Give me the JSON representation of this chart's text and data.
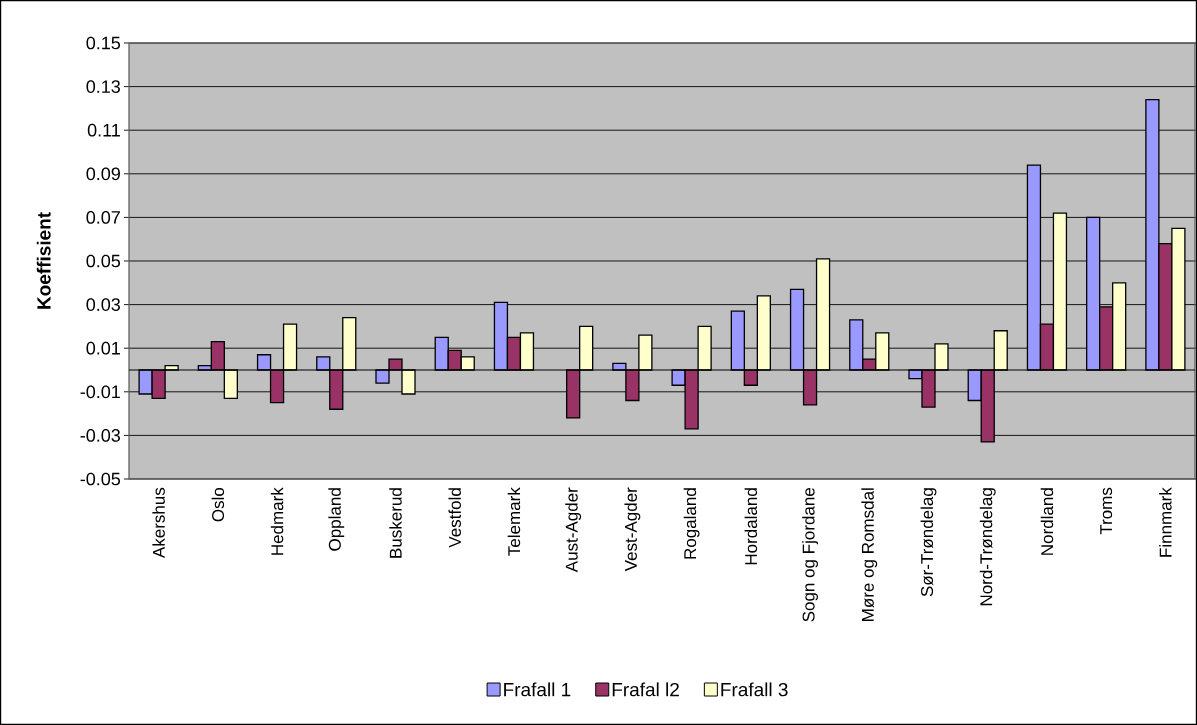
{
  "chart_data": {
    "type": "bar",
    "ylabel": "Koeffisient",
    "categories": [
      "Akershus",
      "Oslo",
      "Hedmark",
      "Oppland",
      "Buskerud",
      "Vestfold",
      "Telemark",
      "Aust-Agder",
      "Vest-Agder",
      "Rogaland",
      "Hordaland",
      "Sogn og Fjordane",
      "Møre og Romsdal",
      "Sør-Trøndelag",
      "Nord-Trøndelag",
      "Nordland",
      "Troms",
      "Finnmark"
    ],
    "series": [
      {
        "name": "Frafall 1",
        "color": "#9999ff",
        "values": [
          -0.011,
          0.002,
          0.007,
          0.006,
          -0.006,
          0.015,
          0.031,
          null,
          0.003,
          -0.007,
          0.027,
          0.037,
          0.023,
          -0.004,
          -0.014,
          0.094,
          0.07,
          0.124
        ]
      },
      {
        "name": "Frafal l2",
        "color": "#993366",
        "values": [
          -0.013,
          0.013,
          -0.015,
          -0.018,
          0.005,
          0.009,
          0.015,
          -0.022,
          -0.014,
          -0.027,
          -0.007,
          -0.016,
          0.005,
          -0.017,
          -0.033,
          0.021,
          0.029,
          0.058
        ]
      },
      {
        "name": "Frafall 3",
        "color": "#ffffcc",
        "values": [
          0.002,
          -0.013,
          0.021,
          0.024,
          -0.011,
          0.006,
          0.017,
          0.02,
          0.016,
          0.02,
          0.034,
          0.051,
          0.017,
          0.012,
          0.018,
          0.072,
          0.04,
          0.065
        ]
      }
    ],
    "ylim": [
      -0.05,
      0.15
    ],
    "yticks": [
      -0.05,
      -0.03,
      -0.01,
      0.01,
      0.03,
      0.05,
      0.07,
      0.09,
      0.11,
      0.13,
      0.15
    ],
    "grid": "y",
    "legend": "bottom"
  }
}
